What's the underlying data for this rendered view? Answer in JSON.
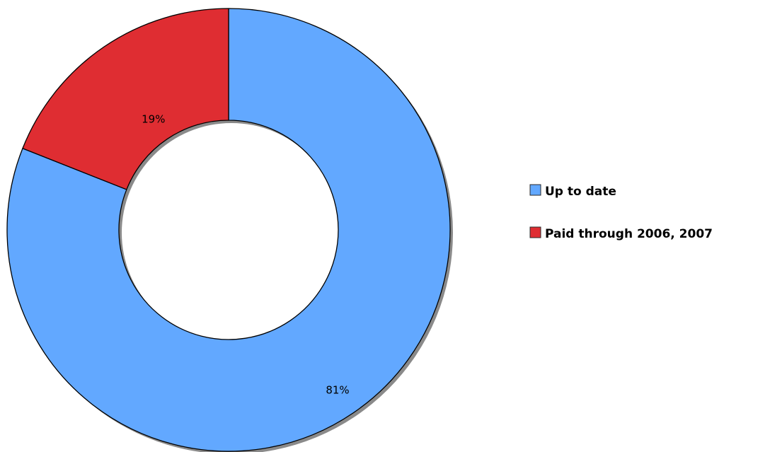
{
  "chart_data": {
    "type": "pie",
    "style": "donut",
    "title": "",
    "slices": [
      {
        "name": "Up to date",
        "value": 81,
        "label": "81%",
        "color": "#62A8FF"
      },
      {
        "name": "Paid through 2006, 2007",
        "value": 19,
        "label": "19%",
        "color": "#DF2D32"
      }
    ],
    "legend": {
      "placement": "right",
      "items": [
        {
          "label": "Up to date",
          "color": "#62A8FF"
        },
        {
          "label": "Paid through 2006, 2007",
          "color": "#DF2D32"
        }
      ]
    }
  }
}
